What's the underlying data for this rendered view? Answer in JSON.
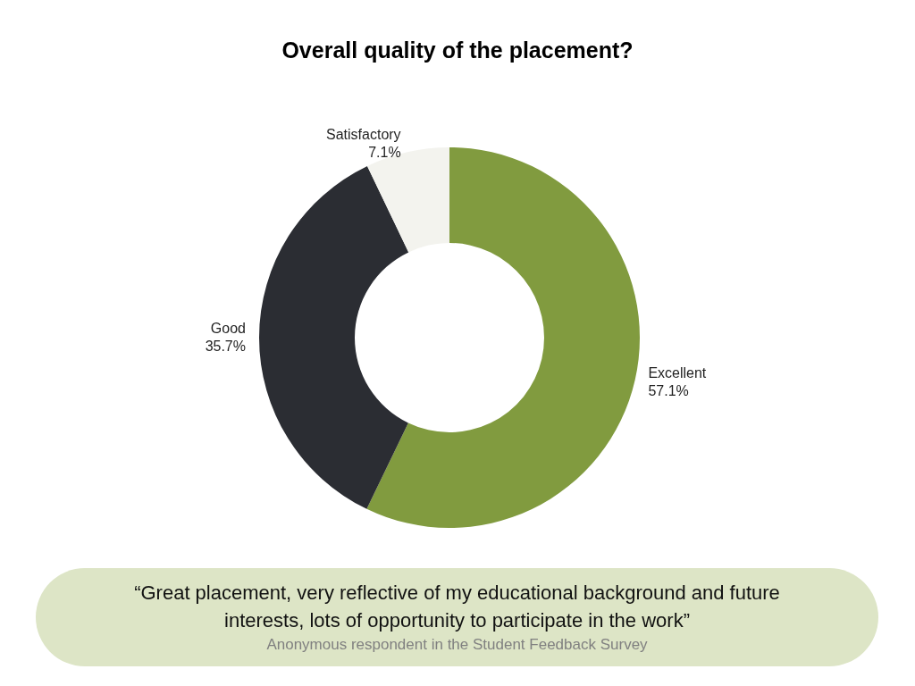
{
  "chart_data": {
    "type": "donut",
    "title": "Overall quality of the placement?",
    "categories": [
      "Excellent",
      "Good",
      "Satisfactory"
    ],
    "values": [
      57.1,
      35.7,
      7.1
    ],
    "colors": [
      "#819b3f",
      "#2b2d33",
      "#f3f3ee"
    ],
    "value_labels": [
      "57.1%",
      "35.7%",
      "7.1%"
    ],
    "annotations": [
      "“Great placement, very reflective of my educational background and future interests, lots of opportunity to participate in the work”",
      "Anonymous respondent in the Student Feedback Survey"
    ]
  }
}
